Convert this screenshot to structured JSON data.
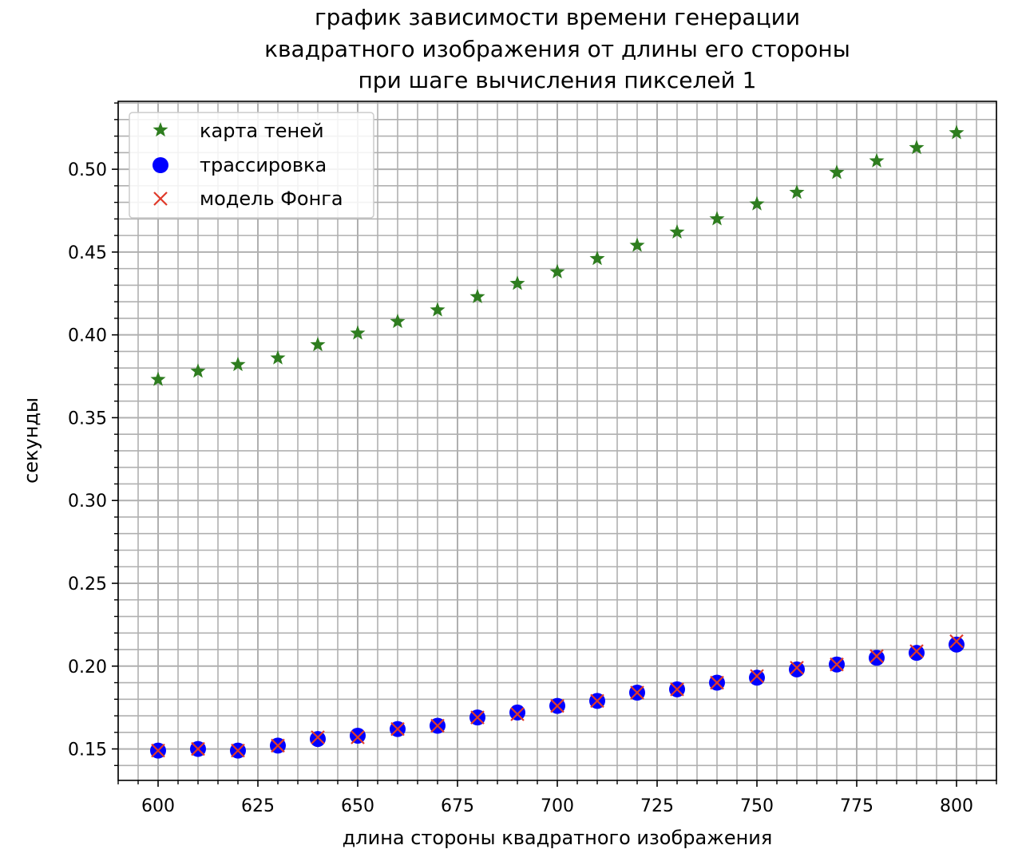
{
  "chart_data": {
    "type": "scatter",
    "title_lines": [
      "график зависимости времени генерации",
      "квадратного изображения от длины его стороны",
      "при шаге вычисления пикселей 1"
    ],
    "xlabel": "длина стороны квадратного изображения",
    "ylabel": "секунды",
    "xlim": [
      590,
      810
    ],
    "ylim": [
      0.131,
      0.541
    ],
    "xticks": [
      600,
      625,
      650,
      675,
      700,
      725,
      750,
      775,
      800
    ],
    "yticks": [
      0.15,
      0.2,
      0.25,
      0.3,
      0.35,
      0.4,
      0.45,
      0.5
    ],
    "ytick_labels": [
      "0.15",
      "0.20",
      "0.25",
      "0.30",
      "0.35",
      "0.40",
      "0.45",
      "0.50"
    ],
    "grid": true,
    "minor_grid": true,
    "legend_position": "upper-left",
    "x": [
      600,
      610,
      620,
      630,
      640,
      650,
      660,
      670,
      680,
      690,
      700,
      710,
      720,
      730,
      740,
      750,
      760,
      770,
      780,
      790,
      800
    ],
    "series": [
      {
        "name": "карта теней",
        "marker": "star",
        "color": "#2e7d1f",
        "values": [
          0.373,
          0.378,
          0.382,
          0.386,
          0.394,
          0.401,
          0.408,
          0.415,
          0.423,
          0.431,
          0.438,
          0.446,
          0.454,
          0.462,
          0.47,
          0.479,
          0.486,
          0.498,
          0.505,
          0.513,
          0.522
        ]
      },
      {
        "name": "трассировка",
        "marker": "circle",
        "color": "#0000ff",
        "values": [
          0.149,
          0.15,
          0.149,
          0.152,
          0.156,
          0.158,
          0.162,
          0.164,
          0.169,
          0.172,
          0.176,
          0.179,
          0.184,
          0.186,
          0.19,
          0.193,
          0.198,
          0.201,
          0.205,
          0.208,
          0.213
        ]
      },
      {
        "name": "модель Фонга",
        "marker": "x",
        "color": "#e03a2a",
        "values": [
          0.149,
          0.15,
          0.149,
          0.152,
          0.157,
          0.157,
          0.162,
          0.164,
          0.169,
          0.171,
          0.176,
          0.179,
          0.184,
          0.186,
          0.19,
          0.194,
          0.199,
          0.201,
          0.206,
          0.209,
          0.215
        ]
      }
    ]
  }
}
